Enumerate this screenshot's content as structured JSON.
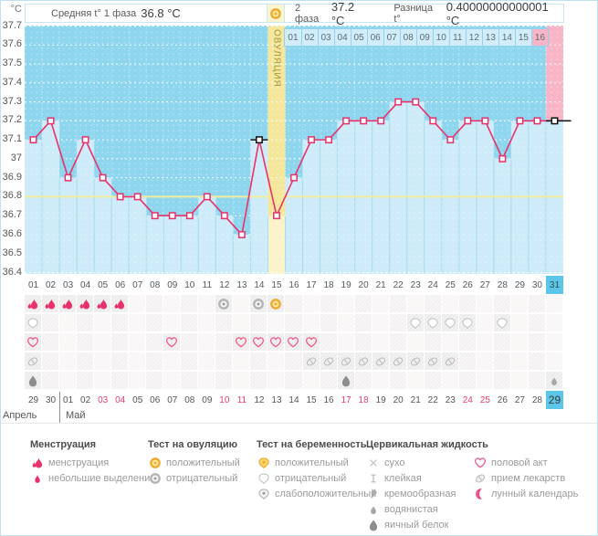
{
  "header": {
    "unit": "°C",
    "phase1_label": "Средняя t° 1 фаза",
    "phase1_value": "36.8 °C",
    "phase2_label": "2 фаза",
    "phase2_value": "37.2 °C",
    "diff_label": "Разница t°",
    "diff_value": "0.40000000000001 °C"
  },
  "chart_data": {
    "type": "line",
    "ylabel": "°C",
    "ylim": [
      36.4,
      37.7
    ],
    "yticks": [
      "37.7",
      "37.6",
      "37.5",
      "37.4",
      "37.3",
      "37.2",
      "37.1",
      "37",
      "36.9",
      "36.8",
      "36.7",
      "36.6",
      "36.5",
      "36.4"
    ],
    "categories": [
      1,
      2,
      3,
      4,
      5,
      6,
      7,
      8,
      9,
      10,
      11,
      12,
      13,
      14,
      15,
      16,
      17,
      18,
      19,
      20,
      21,
      22,
      23,
      24,
      25,
      26,
      27,
      28,
      29,
      30,
      31
    ],
    "temperatures": [
      37.1,
      37.2,
      36.9,
      37.1,
      36.9,
      36.8,
      36.8,
      36.7,
      36.7,
      36.7,
      36.8,
      36.7,
      36.6,
      37.1,
      36.7,
      36.9,
      37.1,
      37.1,
      37.2,
      37.2,
      37.2,
      37.3,
      37.3,
      37.2,
      37.1,
      37.2,
      37.2,
      37.0,
      37.2,
      37.2,
      37.2
    ],
    "coverline": 36.8,
    "ovulation_day": 15,
    "ovulation_label": "ОВУЛЯЦИЯ",
    "phase2_labels": [
      "01",
      "02",
      "03",
      "04",
      "05",
      "06",
      "07",
      "08",
      "09",
      "10",
      "11",
      "12",
      "13",
      "14",
      "15",
      "16"
    ],
    "pink_column_day": 31,
    "black_marker_days": [
      14,
      31
    ],
    "phase1_avg": "36.8 °C",
    "phase2_avg": "37.2 °C",
    "difference": "0.40000000000001 °C",
    "grid": true,
    "legend_position": "bottom"
  },
  "day_numbers": [
    "01",
    "02",
    "03",
    "04",
    "05",
    "06",
    "07",
    "08",
    "09",
    "10",
    "11",
    "12",
    "13",
    "14",
    "15",
    "16",
    "17",
    "18",
    "19",
    "20",
    "21",
    "22",
    "23",
    "24",
    "25",
    "26",
    "27",
    "28",
    "29",
    "30",
    "31"
  ],
  "today_cycle_day": 31,
  "icon_rows": [
    {
      "name": "menstruation-ovulation-test",
      "cells": {
        "1": "menstruation",
        "2": "menstruation",
        "3": "menstruation",
        "4": "menstruation",
        "5": "menstruation",
        "6": "menstruation",
        "12": "ovulation-test-negative",
        "14": "ovulation-test-negative",
        "15": "ovulation-test-positive"
      }
    },
    {
      "name": "pregnancy-test",
      "cells": {
        "1": "pregnancy-test-negative",
        "23": "pregnancy-test-negative",
        "24": "pregnancy-test-negative",
        "25": "pregnancy-test-negative",
        "26": "pregnancy-test-negative",
        "28": "pregnancy-test-negative"
      }
    },
    {
      "name": "intercourse",
      "cells": {
        "1": "intercourse",
        "9": "intercourse",
        "13": "intercourse",
        "14": "intercourse",
        "15": "intercourse",
        "16": "intercourse",
        "17": "intercourse"
      }
    },
    {
      "name": "medication",
      "cells": {
        "1": "medication",
        "17": "medication",
        "18": "medication",
        "19": "medication",
        "20": "medication",
        "21": "medication",
        "22": "medication",
        "23": "medication",
        "24": "medication",
        "25": "medication"
      }
    },
    {
      "name": "cervical-fluid",
      "cells": {
        "1": "egg-white",
        "19": "egg-white",
        "31": "watery"
      }
    }
  ],
  "dates_row": {
    "dates": [
      "29",
      "30",
      "01",
      "02",
      "03",
      "04",
      "05",
      "06",
      "07",
      "08",
      "09",
      "10",
      "11",
      "12",
      "13",
      "14",
      "15",
      "16",
      "17",
      "18",
      "19",
      "20",
      "21",
      "22",
      "23",
      "24",
      "25",
      "26",
      "27",
      "28",
      "29"
    ],
    "red_indices": [
      4,
      5,
      11,
      12,
      18,
      19,
      25,
      26
    ],
    "today_index": 30,
    "months": [
      {
        "label": "Апрель"
      },
      {
        "label": "Май"
      }
    ]
  },
  "legend": {
    "columns": [
      {
        "title": "Менструация",
        "items": [
          {
            "icon": "menstruation",
            "label": "менструация"
          },
          {
            "icon": "spotting",
            "label": "небольшие выделения"
          }
        ]
      },
      {
        "title": "Тест на овуляцию",
        "items": [
          {
            "icon": "ovulation-test-positive",
            "label": "положительный"
          },
          {
            "icon": "ovulation-test-negative",
            "label": "отрицательный"
          }
        ]
      },
      {
        "title": "Тест на беременность",
        "items": [
          {
            "icon": "pregnancy-test-positive",
            "label": "положительный"
          },
          {
            "icon": "pregnancy-test-negative",
            "label": "отрицательный"
          },
          {
            "icon": "pregnancy-test-weak",
            "label": "слабоположительный"
          }
        ]
      },
      {
        "title": "Цервикальная жидкость",
        "items": [
          {
            "icon": "dry",
            "label": "сухо"
          },
          {
            "icon": "sticky",
            "label": "клейкая"
          },
          {
            "icon": "creamy",
            "label": "кремообразная"
          },
          {
            "icon": "watery",
            "label": "водянистая"
          },
          {
            "icon": "egg-white",
            "label": "яичный белок"
          }
        ]
      },
      {
        "title": "",
        "items": [
          {
            "icon": "intercourse",
            "label": "половой акт"
          },
          {
            "icon": "medication",
            "label": "прием лекарств"
          },
          {
            "icon": "lunar",
            "label": "лунный календарь"
          }
        ]
      }
    ]
  },
  "colors": {
    "line": "#e8326b",
    "coverline": "#f2ec9e",
    "chart_bg": "#8ed5ee",
    "bar_fill": "#cdebf8",
    "ovulation_col": "#f4e79b",
    "ovulation_bar": "#faf3c9",
    "pink_col": "#f8b5c8",
    "today_highlight": "#5cc6e8",
    "positive_test": "#f0a930",
    "red_date": "#e8416b"
  }
}
